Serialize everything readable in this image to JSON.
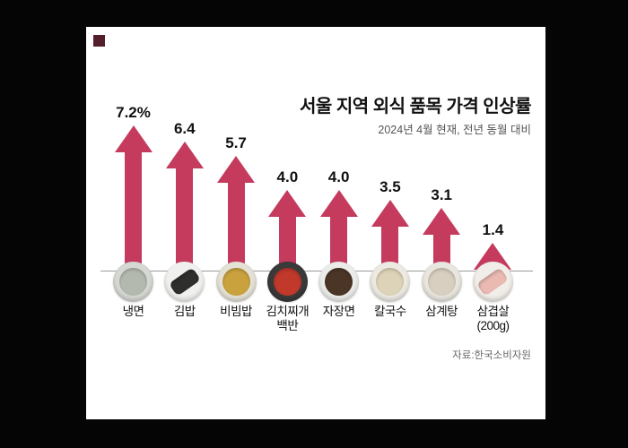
{
  "chart": {
    "title": "서울 지역 외식 품목 가격 인상률",
    "subtitle": "2024년 4월 현재, 전년 동월 대비",
    "source": "자료:한국소비자원"
  },
  "chart_data": {
    "type": "bar",
    "title": "서울 지역 외식 품목 가격 인상률",
    "subtitle": "2024년 4월 현재, 전년 동월 대비",
    "unit": "%",
    "categories": [
      "냉면",
      "김밥",
      "비빔밥",
      "김치찌개 백반",
      "자장면",
      "칼국수",
      "삼계탕",
      "삼겹살 (200g)"
    ],
    "category_display": [
      "냉면",
      "김밥",
      "비빔밥",
      "김치찌개\n백반",
      "자장면",
      "칼국수",
      "삼계탕",
      "삼겹살\n(200g)"
    ],
    "values": [
      7.2,
      6.4,
      5.7,
      4.0,
      4.0,
      3.5,
      3.1,
      1.4
    ],
    "value_labels": [
      "7.2%",
      "6.4",
      "5.7",
      "4.0",
      "4.0",
      "3.5",
      "3.1",
      "1.4"
    ],
    "bar_color": "#c43b5e",
    "bar_style": "up-arrow",
    "ylim": [
      0,
      8
    ],
    "grid": false,
    "legend": false,
    "source": "자료:한국소비자원",
    "icons": [
      {
        "name": "naengmyeon-bowl-icon",
        "outer": "#d6d8d3",
        "inner": "#b4b9af",
        "shape": "circle"
      },
      {
        "name": "gimbap-roll-icon",
        "outer": "#f0f0ee",
        "inner": "#2e2e2c",
        "shape": "bar"
      },
      {
        "name": "bibimbap-bowl-icon",
        "outer": "#e4e1d6",
        "inner": "#c9a23e",
        "shape": "circle"
      },
      {
        "name": "kimchi-stew-pot-icon",
        "outer": "#3a3a3a",
        "inner": "#c0392b",
        "shape": "circle"
      },
      {
        "name": "jajangmyeon-bowl-icon",
        "outer": "#ececea",
        "inner": "#4a3526",
        "shape": "circle"
      },
      {
        "name": "kalguksu-bowl-icon",
        "outer": "#eceae3",
        "inner": "#ddd3b8",
        "shape": "circle"
      },
      {
        "name": "samgyetang-bowl-icon",
        "outer": "#e8e6df",
        "inner": "#d9cfc0",
        "shape": "circle"
      },
      {
        "name": "pork-belly-icon",
        "outer": "#f1eee9",
        "inner": "#e9b9b2",
        "shape": "bar"
      }
    ]
  }
}
